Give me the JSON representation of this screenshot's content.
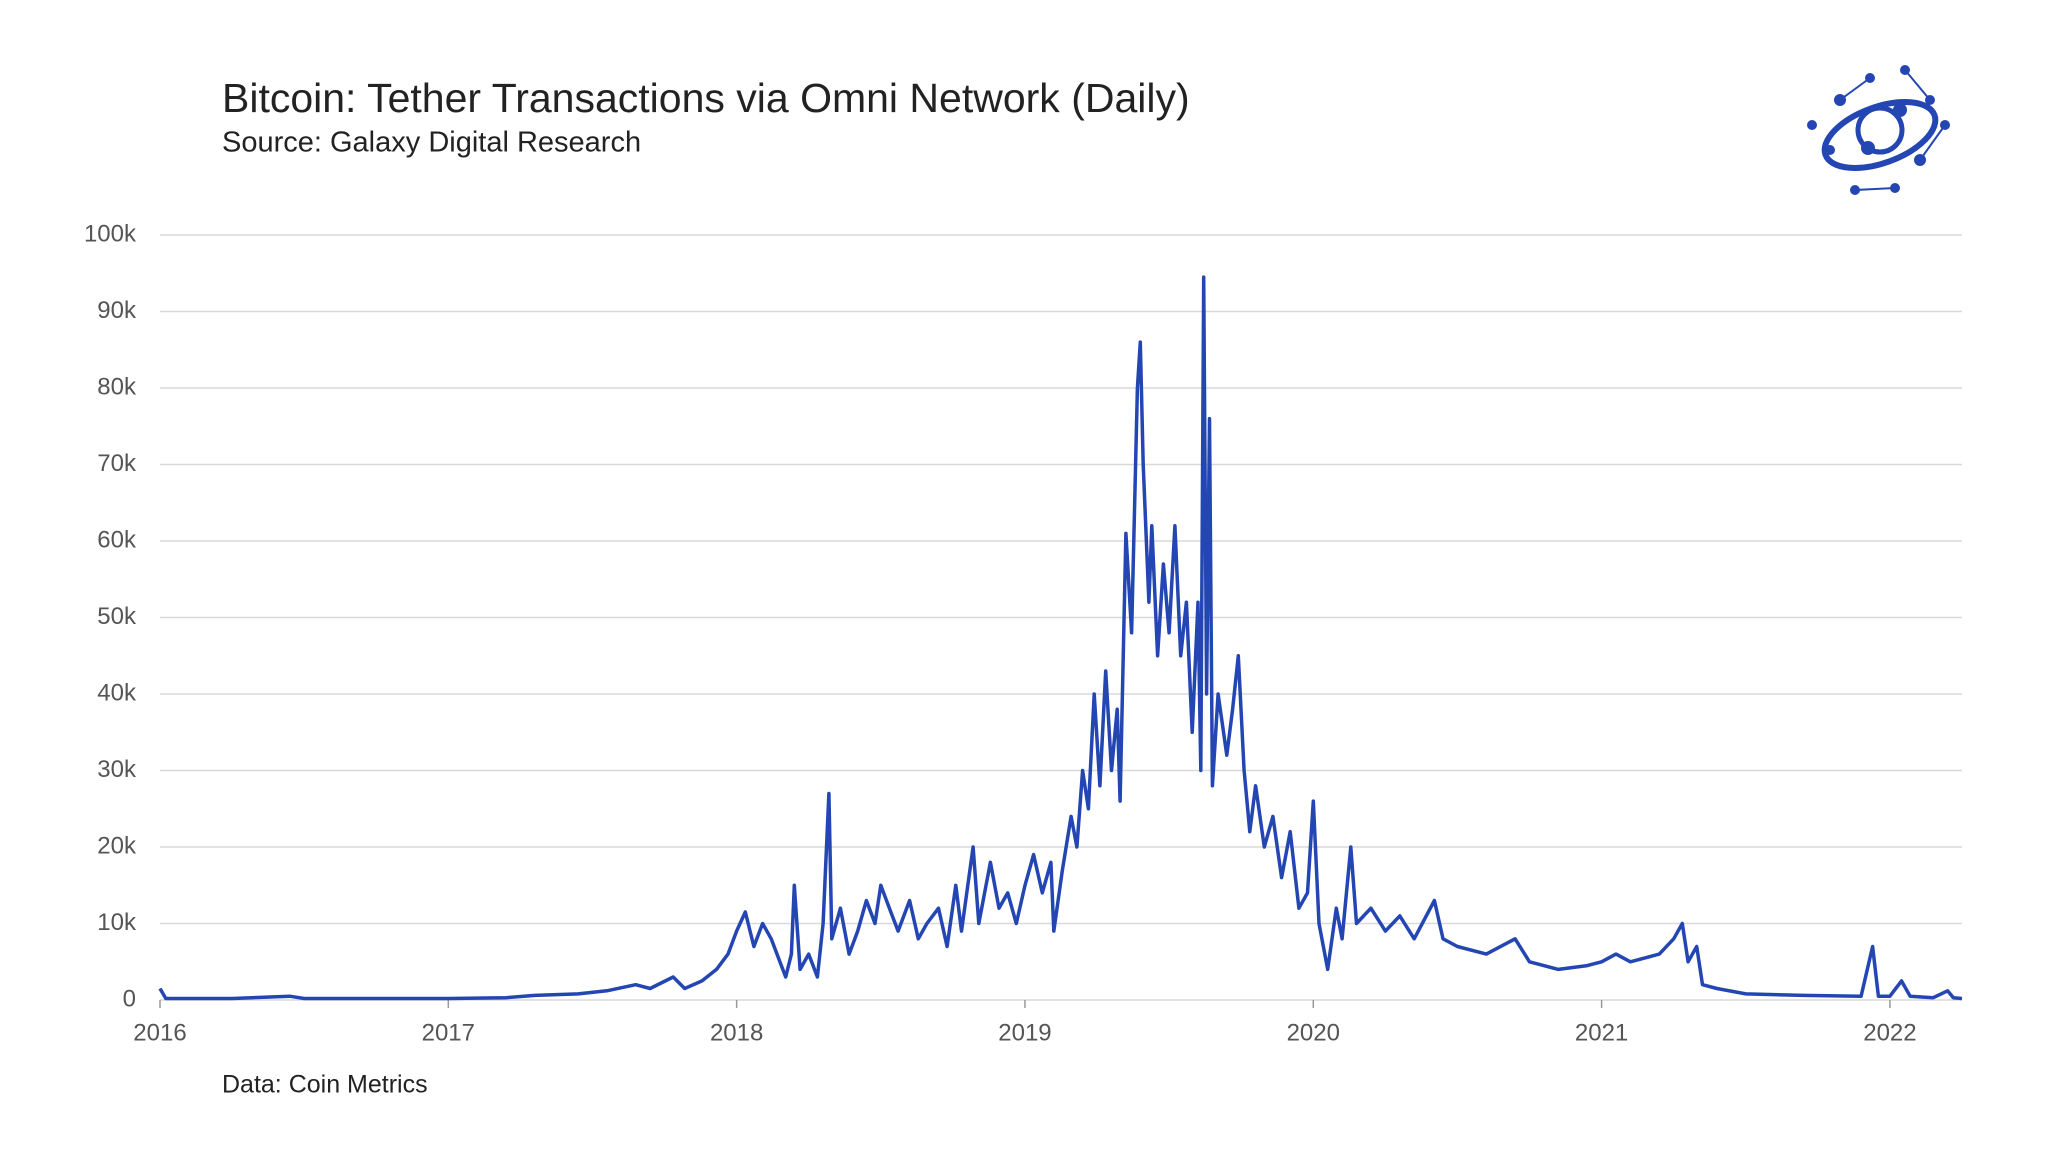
{
  "chart_data": {
    "type": "line",
    "title": "Bitcoin: Tether Transactions via Omni Network (Daily)",
    "subtitle": "Source: Galaxy Digital Research",
    "note": "Data: Coin Metrics",
    "x": [
      2016.0,
      2016.02,
      2016.25,
      2016.45,
      2016.5,
      2016.75,
      2017.0,
      2017.2,
      2017.3,
      2017.45,
      2017.55,
      2017.65,
      2017.7,
      2017.78,
      2017.82,
      2017.88,
      2017.93,
      2017.97,
      2018.0,
      2018.03,
      2018.06,
      2018.09,
      2018.12,
      2018.15,
      2018.17,
      2018.19,
      2018.2,
      2018.22,
      2018.25,
      2018.28,
      2018.3,
      2018.32,
      2018.33,
      2018.36,
      2018.39,
      2018.42,
      2018.45,
      2018.48,
      2018.5,
      2018.53,
      2018.56,
      2018.6,
      2018.63,
      2018.66,
      2018.7,
      2018.73,
      2018.76,
      2018.78,
      2018.82,
      2018.84,
      2018.88,
      2018.91,
      2018.94,
      2018.97,
      2019.0,
      2019.03,
      2019.06,
      2019.09,
      2019.1,
      2019.13,
      2019.16,
      2019.18,
      2019.2,
      2019.22,
      2019.24,
      2019.26,
      2019.28,
      2019.3,
      2019.32,
      2019.33,
      2019.35,
      2019.37,
      2019.39,
      2019.4,
      2019.41,
      2019.43,
      2019.44,
      2019.46,
      2019.48,
      2019.5,
      2019.52,
      2019.54,
      2019.56,
      2019.58,
      2019.6,
      2019.61,
      2019.62,
      2019.63,
      2019.64,
      2019.65,
      2019.67,
      2019.7,
      2019.72,
      2019.74,
      2019.76,
      2019.78,
      2019.8,
      2019.83,
      2019.86,
      2019.89,
      2019.92,
      2019.95,
      2019.98,
      2020.0,
      2020.02,
      2020.05,
      2020.08,
      2020.1,
      2020.13,
      2020.15,
      2020.2,
      2020.25,
      2020.3,
      2020.35,
      2020.42,
      2020.45,
      2020.5,
      2020.6,
      2020.7,
      2020.75,
      2020.85,
      2020.95,
      2021.0,
      2021.05,
      2021.1,
      2021.2,
      2021.25,
      2021.28,
      2021.3,
      2021.33,
      2021.35,
      2021.4,
      2021.5,
      2021.7,
      2021.9,
      2021.94,
      2021.96,
      2022.0,
      2022.04,
      2022.07,
      2022.15,
      2022.2,
      2022.22,
      2022.25
    ],
    "series": [
      {
        "name": "Tether Transactions",
        "color": "#2446b3",
        "values": [
          1500,
          200,
          200,
          500,
          200,
          200,
          200,
          300,
          600,
          800,
          1200,
          2000,
          1500,
          3000,
          1500,
          2500,
          4000,
          6000,
          9000,
          11500,
          7000,
          10000,
          8000,
          5000,
          3000,
          6000,
          15000,
          4000,
          6000,
          3000,
          10000,
          27000,
          8000,
          12000,
          6000,
          9000,
          13000,
          10000,
          15000,
          12000,
          9000,
          13000,
          8000,
          10000,
          12000,
          7000,
          15000,
          9000,
          20000,
          10000,
          18000,
          12000,
          14000,
          10000,
          15000,
          19000,
          14000,
          18000,
          9000,
          17000,
          24000,
          20000,
          30000,
          25000,
          40000,
          28000,
          43000,
          30000,
          38000,
          26000,
          61000,
          48000,
          80000,
          86000,
          70000,
          52000,
          62000,
          45000,
          57000,
          48000,
          62000,
          45000,
          52000,
          35000,
          52000,
          30000,
          94500,
          40000,
          76000,
          28000,
          40000,
          32000,
          38000,
          45000,
          30000,
          22000,
          28000,
          20000,
          24000,
          16000,
          22000,
          12000,
          14000,
          26000,
          10000,
          4000,
          12000,
          8000,
          20000,
          10000,
          12000,
          9000,
          11000,
          8000,
          13000,
          8000,
          7000,
          6000,
          8000,
          5000,
          4000,
          4500,
          5000,
          6000,
          5000,
          6000,
          8000,
          10000,
          5000,
          7000,
          2000,
          1500,
          800,
          600,
          500,
          7000,
          500,
          500,
          2500,
          500,
          300,
          1200,
          300,
          200
        ]
      }
    ],
    "xlim": [
      2016,
      2022.25
    ],
    "xticks": [
      2016,
      2017,
      2018,
      2019,
      2020,
      2021,
      2022
    ],
    "ylim": [
      0,
      100000
    ],
    "yticks": [
      {
        "value": 0,
        "label": "0"
      },
      {
        "value": 10000,
        "label": "10k"
      },
      {
        "value": 20000,
        "label": "20k"
      },
      {
        "value": 30000,
        "label": "30k"
      },
      {
        "value": 40000,
        "label": "40k"
      },
      {
        "value": 50000,
        "label": "50k"
      },
      {
        "value": 60000,
        "label": "60k"
      },
      {
        "value": 70000,
        "label": "70k"
      },
      {
        "value": 80000,
        "label": "80k"
      },
      {
        "value": 90000,
        "label": "90k"
      },
      {
        "value": 100000,
        "label": "100k"
      }
    ],
    "grid": true
  }
}
